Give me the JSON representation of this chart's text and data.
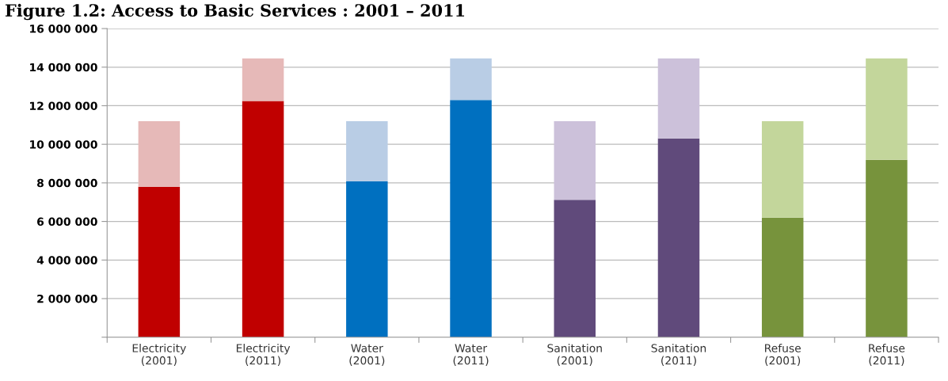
{
  "chart_data": {
    "type": "bar",
    "title": "Figure 1.2: Access to Basic Services : 2001 – 2011",
    "categories": [
      "Electricity\n(2001)",
      "Electricity\n(2011)",
      "Water\n(2001)",
      "Water\n(2011)",
      "Sanitation\n(2001)",
      "Sanitation\n(2011)",
      "Refuse\n(2001)",
      "Refuse\n(2011)"
    ],
    "stacked": true,
    "series": [
      {
        "colors": [
          "#c00000",
          "#c00000",
          "#0070c0",
          "#0070c0",
          "#604a7b",
          "#604a7b",
          "#77933c",
          "#77933c"
        ],
        "values": [
          7800000,
          12250000,
          8080000,
          12300000,
          7120000,
          10300000,
          6200000,
          9200000
        ]
      },
      {
        "colors": [
          "#e6b9b8",
          "#e6b9b8",
          "#b9cde5",
          "#b9cde5",
          "#ccc1da",
          "#ccc1da",
          "#c3d69b",
          "#c3d69b"
        ],
        "values": [
          3400000,
          2200000,
          3120000,
          2150000,
          4080000,
          4150000,
          5000000,
          5250000
        ]
      }
    ],
    "ylim": [
      0,
      16000000
    ],
    "yticks": [
      {
        "value": 0,
        "label": null
      },
      {
        "value": 2000000,
        "label": "2 000 000"
      },
      {
        "value": 4000000,
        "label": "4 000 000"
      },
      {
        "value": 6000000,
        "label": "6 000 000"
      },
      {
        "value": 8000000,
        "label": "8 000 000"
      },
      {
        "value": 10000000,
        "label": "10 000 000"
      },
      {
        "value": 12000000,
        "label": "12 000 000"
      },
      {
        "value": 14000000,
        "label": "14 000 000"
      },
      {
        "value": 16000000,
        "label": "16 000 000"
      }
    ],
    "grid": "y"
  }
}
